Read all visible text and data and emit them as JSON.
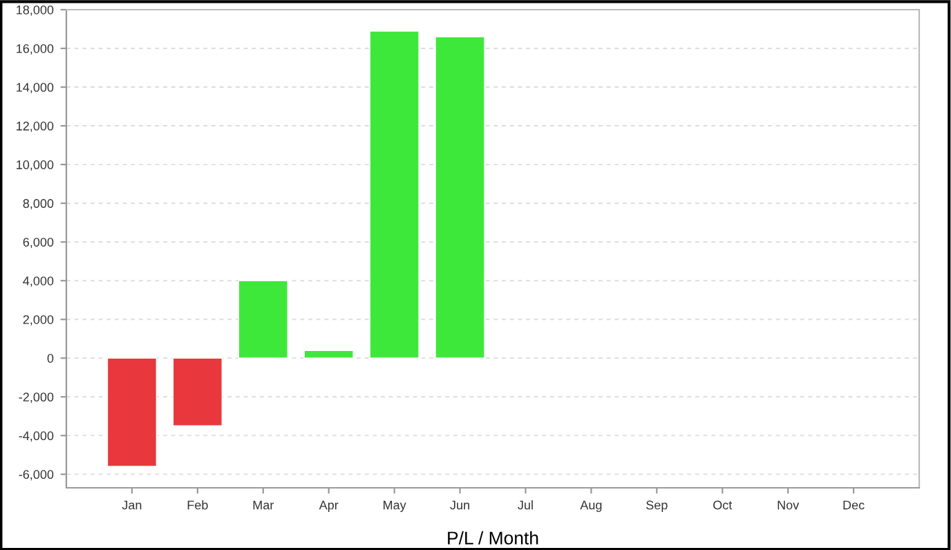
{
  "chart_data": {
    "type": "bar",
    "xlabel": "P/L / Month",
    "categories": [
      "Jan",
      "Feb",
      "Mar",
      "Apr",
      "May",
      "Jun",
      "Jul",
      "Aug",
      "Sep",
      "Oct",
      "Nov",
      "Dec"
    ],
    "values": [
      -5600,
      -3500,
      4000,
      400,
      16900,
      16600,
      null,
      null,
      null,
      null,
      null,
      null
    ],
    "colors": [
      "#e8383d",
      "#e8383d",
      "#3ee83b",
      "#3ee83b",
      "#3ee83b",
      "#3ee83b",
      "#3ee83b",
      "#3ee83b",
      "#3ee83b",
      "#3ee83b",
      "#3ee83b",
      "#3ee83b"
    ],
    "ylim": [
      -6700,
      18000
    ],
    "yticks": [
      {
        "value": -6000,
        "label": "-6,000"
      },
      {
        "value": -4000,
        "label": "-4,000"
      },
      {
        "value": -2000,
        "label": "-2,000"
      },
      0,
      {
        "value": 2000,
        "label": "2,000"
      },
      {
        "value": 4000,
        "label": "4,000"
      },
      {
        "value": 6000,
        "label": "6,000"
      },
      {
        "value": 8000,
        "label": "8,000"
      },
      {
        "value": 10000,
        "label": "10,000"
      },
      {
        "value": 12000,
        "label": "12,000"
      },
      {
        "value": 14000,
        "label": "14,000"
      },
      {
        "value": 16000,
        "label": "16,000"
      },
      {
        "value": 18000,
        "label": "18,000"
      }
    ],
    "grid": "y"
  }
}
